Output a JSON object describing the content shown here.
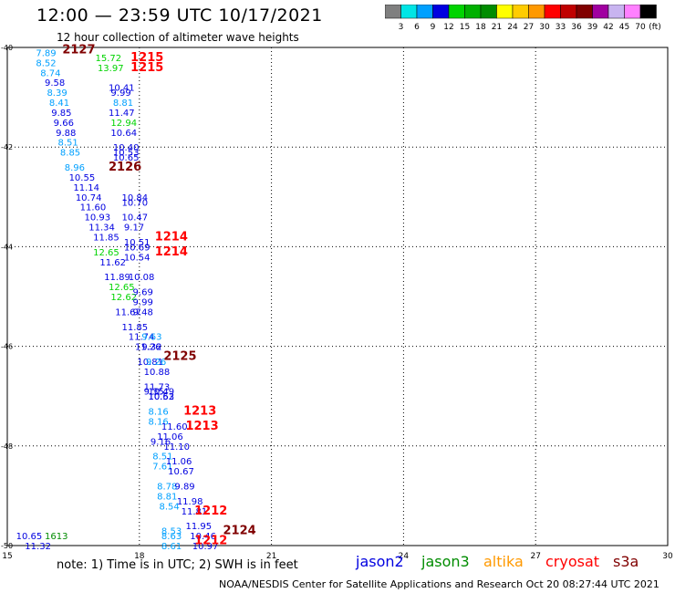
{
  "header": {
    "title": "12:00 — 23:59 UTC 10/17/2021",
    "subtitle": "12 hour collection of altimeter wave heights"
  },
  "legend": {
    "bins": [
      {
        "color": "#7f7f7f",
        "label": "3"
      },
      {
        "color": "#00e5e5",
        "label": "6"
      },
      {
        "color": "#00a0ff",
        "label": "9"
      },
      {
        "color": "#0000e0",
        "label": "12"
      },
      {
        "color": "#00d400",
        "label": "15"
      },
      {
        "color": "#00b000",
        "label": "18"
      },
      {
        "color": "#008c00",
        "label": "21"
      },
      {
        "color": "#ffff00",
        "label": "24"
      },
      {
        "color": "#ffcc00",
        "label": "27"
      },
      {
        "color": "#ff9900",
        "label": "30"
      },
      {
        "color": "#ff0000",
        "label": "33"
      },
      {
        "color": "#c00000",
        "label": "36"
      },
      {
        "color": "#800000",
        "label": "39"
      },
      {
        "color": "#a000a0",
        "label": "42"
      },
      {
        "color": "#c8b4f0",
        "label": "45"
      },
      {
        "color": "#ff80ff",
        "label": "70"
      },
      {
        "color": "#000000",
        "label": ""
      }
    ],
    "unit": "(ft)"
  },
  "map": {
    "lon_ticks": [
      "15",
      "18",
      "21",
      "24",
      "27",
      "30"
    ],
    "lat_ticks": [
      "-40",
      "-42",
      "-44",
      "-46",
      "-48",
      "-50"
    ],
    "labels": [
      {
        "t": "7.89",
        "lon": 15.65,
        "lat": -40.1,
        "c": "#00a0ff"
      },
      {
        "t": "8.52",
        "lon": 15.65,
        "lat": -40.3,
        "c": "#00a0ff"
      },
      {
        "t": "8.74",
        "lon": 15.75,
        "lat": -40.5,
        "c": "#00a0ff"
      },
      {
        "t": "9.58",
        "lon": 15.85,
        "lat": -40.7,
        "c": "#0000e0"
      },
      {
        "t": "8.39",
        "lon": 15.9,
        "lat": -40.9,
        "c": "#00a0ff"
      },
      {
        "t": "8.41",
        "lon": 15.95,
        "lat": -41.1,
        "c": "#00a0ff"
      },
      {
        "t": "9.85",
        "lon": 16.0,
        "lat": -41.3,
        "c": "#0000e0"
      },
      {
        "t": "9.66",
        "lon": 16.05,
        "lat": -41.5,
        "c": "#0000e0"
      },
      {
        "t": "9.88",
        "lon": 16.1,
        "lat": -41.7,
        "c": "#0000e0"
      },
      {
        "t": "8.51",
        "lon": 16.15,
        "lat": -41.9,
        "c": "#00a0ff"
      },
      {
        "t": "8.85",
        "lon": 16.2,
        "lat": -42.1,
        "c": "#00a0ff"
      },
      {
        "t": "8.96",
        "lon": 16.3,
        "lat": -42.4,
        "c": "#00a0ff"
      },
      {
        "t": "10.55",
        "lon": 16.4,
        "lat": -42.6,
        "c": "#0000e0"
      },
      {
        "t": "11.14",
        "lon": 16.5,
        "lat": -42.8,
        "c": "#0000e0"
      },
      {
        "t": "10.74",
        "lon": 16.55,
        "lat": -43.0,
        "c": "#0000e0"
      },
      {
        "t": "11.60",
        "lon": 16.65,
        "lat": -43.2,
        "c": "#0000e0"
      },
      {
        "t": "10.93",
        "lon": 16.75,
        "lat": -43.4,
        "c": "#0000e0"
      },
      {
        "t": "11.34",
        "lon": 16.85,
        "lat": -43.6,
        "c": "#0000e0"
      },
      {
        "t": "11.85",
        "lon": 16.95,
        "lat": -43.8,
        "c": "#0000e0"
      },
      {
        "t": "12.65",
        "lon": 16.95,
        "lat": -44.1,
        "c": "#00d400"
      },
      {
        "t": "11.62",
        "lon": 17.1,
        "lat": -44.3,
        "c": "#0000e0"
      },
      {
        "t": "11.89",
        "lon": 17.2,
        "lat": -44.6,
        "c": "#0000e0"
      },
      {
        "t": "12.65",
        "lon": 17.3,
        "lat": -44.8,
        "c": "#00d400"
      },
      {
        "t": "12.62",
        "lon": 17.35,
        "lat": -45.0,
        "c": "#00d400"
      },
      {
        "t": "11.67",
        "lon": 17.45,
        "lat": -45.3,
        "c": "#0000e0"
      },
      {
        "t": "11.85",
        "lon": 17.6,
        "lat": -45.6,
        "c": "#0000e0"
      },
      {
        "t": "11.74",
        "lon": 17.75,
        "lat": -45.8,
        "c": "#0000e0"
      },
      {
        "t": "11.26",
        "lon": 17.9,
        "lat": -46.0,
        "c": "#0000e0"
      },
      {
        "t": "10.81",
        "lon": 17.95,
        "lat": -46.3,
        "c": "#0000e0"
      },
      {
        "t": "10.88",
        "lon": 18.1,
        "lat": -46.5,
        "c": "#0000e0"
      },
      {
        "t": "11.73",
        "lon": 18.1,
        "lat": -46.8,
        "c": "#0000e0"
      },
      {
        "t": "9.35",
        "lon": 18.1,
        "lat": -46.9,
        "c": "#0000e0"
      },
      {
        "t": "10.63",
        "lon": 18.2,
        "lat": -47.0,
        "c": "#0000e0"
      },
      {
        "t": "8.16",
        "lon": 18.2,
        "lat": -47.3,
        "c": "#00a0ff"
      },
      {
        "t": "8.16",
        "lon": 18.2,
        "lat": -47.5,
        "c": "#00a0ff"
      },
      {
        "t": "9.16",
        "lon": 18.25,
        "lat": -47.9,
        "c": "#0000e0"
      },
      {
        "t": "8.51",
        "lon": 18.3,
        "lat": -48.2,
        "c": "#00a0ff"
      },
      {
        "t": "7.61",
        "lon": 18.3,
        "lat": -48.4,
        "c": "#00a0ff"
      },
      {
        "t": "8.78",
        "lon": 18.4,
        "lat": -48.8,
        "c": "#00a0ff"
      },
      {
        "t": "8.81",
        "lon": 18.4,
        "lat": -49.0,
        "c": "#00a0ff"
      },
      {
        "t": "8.54",
        "lon": 18.45,
        "lat": -49.2,
        "c": "#00a0ff"
      },
      {
        "t": "8.53",
        "lon": 18.5,
        "lat": -49.7,
        "c": "#00a0ff"
      },
      {
        "t": "8.63",
        "lon": 18.5,
        "lat": -49.8,
        "c": "#00a0ff"
      },
      {
        "t": "8.61",
        "lon": 18.5,
        "lat": -50.0,
        "c": "#00a0ff"
      },
      {
        "t": "10.65",
        "lon": 15.2,
        "lat": -49.8,
        "c": "#0000e0"
      },
      {
        "t": "11.32",
        "lon": 15.4,
        "lat": -50.0,
        "c": "#0000e0"
      },
      {
        "t": "1613",
        "lon": 15.85,
        "lat": -49.8,
        "c": "#008c00"
      },
      {
        "t": "15.72",
        "lon": 17.0,
        "lat": -40.2,
        "c": "#00d400"
      },
      {
        "t": "13.97",
        "lon": 17.05,
        "lat": -40.4,
        "c": "#00d400"
      },
      {
        "t": "10.41",
        "lon": 17.3,
        "lat": -40.8,
        "c": "#0000e0"
      },
      {
        "t": "9.99",
        "lon": 17.35,
        "lat": -40.9,
        "c": "#0000e0"
      },
      {
        "t": "8.81",
        "lon": 17.4,
        "lat": -41.1,
        "c": "#00a0ff"
      },
      {
        "t": "11.47",
        "lon": 17.3,
        "lat": -41.3,
        "c": "#0000e0"
      },
      {
        "t": "12.94",
        "lon": 17.35,
        "lat": -41.5,
        "c": "#00d400"
      },
      {
        "t": "10.64",
        "lon": 17.35,
        "lat": -41.7,
        "c": "#0000e0"
      },
      {
        "t": "10.40",
        "lon": 17.4,
        "lat": -42.0,
        "c": "#0000e0"
      },
      {
        "t": "10.53",
        "lon": 17.4,
        "lat": -42.1,
        "c": "#0000e0"
      },
      {
        "t": "10.65",
        "lon": 17.4,
        "lat": -42.2,
        "c": "#0000e0"
      },
      {
        "t": "10.84",
        "lon": 17.6,
        "lat": -43.0,
        "c": "#0000e0"
      },
      {
        "t": "10.70",
        "lon": 17.6,
        "lat": -43.1,
        "c": "#0000e0"
      },
      {
        "t": "10.47",
        "lon": 17.6,
        "lat": -43.4,
        "c": "#0000e0"
      },
      {
        "t": "9.17",
        "lon": 17.65,
        "lat": -43.6,
        "c": "#0000e0"
      },
      {
        "t": "10.51",
        "lon": 17.65,
        "lat": -43.9,
        "c": "#0000e0"
      },
      {
        "t": "10.69",
        "lon": 17.65,
        "lat": -44.0,
        "c": "#0000e0"
      },
      {
        "t": "10.54",
        "lon": 17.65,
        "lat": -44.2,
        "c": "#0000e0"
      },
      {
        "t": "10.08",
        "lon": 17.75,
        "lat": -44.6,
        "c": "#0000e0"
      },
      {
        "t": "9.69",
        "lon": 17.85,
        "lat": -44.9,
        "c": "#0000e0"
      },
      {
        "t": "9.99",
        "lon": 17.85,
        "lat": -45.1,
        "c": "#0000e0"
      },
      {
        "t": "9.48",
        "lon": 17.85,
        "lat": -45.3,
        "c": "#0000e0"
      },
      {
        "t": "9.63",
        "lon": 18.05,
        "lat": -45.8,
        "c": "#00a0ff"
      },
      {
        "t": "9.32",
        "lon": 18.05,
        "lat": -46.0,
        "c": "#0000e0"
      },
      {
        "t": "9.26",
        "lon": 18.15,
        "lat": -46.3,
        "c": "#00a0ff"
      },
      {
        "t": "10.49",
        "lon": 18.2,
        "lat": -46.9,
        "c": "#0000e0"
      },
      {
        "t": "10.52",
        "lon": 18.2,
        "lat": -47.0,
        "c": "#0000e0"
      },
      {
        "t": "11.60",
        "lon": 18.5,
        "lat": -47.6,
        "c": "#0000e0"
      },
      {
        "t": "11.06",
        "lon": 18.4,
        "lat": -47.8,
        "c": "#0000e0"
      },
      {
        "t": "11.10",
        "lon": 18.55,
        "lat": -48.0,
        "c": "#0000e0"
      },
      {
        "t": "11.06",
        "lon": 18.6,
        "lat": -48.3,
        "c": "#0000e0"
      },
      {
        "t": "10.67",
        "lon": 18.65,
        "lat": -48.5,
        "c": "#0000e0"
      },
      {
        "t": "9.89",
        "lon": 18.8,
        "lat": -48.8,
        "c": "#0000e0"
      },
      {
        "t": "11.98",
        "lon": 18.85,
        "lat": -49.1,
        "c": "#0000e0"
      },
      {
        "t": "11.81",
        "lon": 18.95,
        "lat": -49.3,
        "c": "#0000e0"
      },
      {
        "t": "11.95",
        "lon": 19.05,
        "lat": -49.6,
        "c": "#0000e0"
      },
      {
        "t": "10.46",
        "lon": 19.15,
        "lat": -49.8,
        "c": "#0000e0"
      },
      {
        "t": "10.97",
        "lon": 19.2,
        "lat": -50.0,
        "c": "#0000e0"
      },
      {
        "t": "2127",
        "lon": 16.25,
        "lat": -40.05,
        "c": "#800000",
        "big": true
      },
      {
        "t": "1215",
        "lon": 17.8,
        "lat": -40.2,
        "c": "#ff0000",
        "big": true
      },
      {
        "t": "1215",
        "lon": 17.8,
        "lat": -40.4,
        "c": "#ff0000",
        "big": true
      },
      {
        "t": "2126",
        "lon": 17.3,
        "lat": -42.4,
        "c": "#800000",
        "big": true
      },
      {
        "t": "1214",
        "lon": 18.35,
        "lat": -43.8,
        "c": "#ff0000",
        "big": true
      },
      {
        "t": "1214",
        "lon": 18.35,
        "lat": -44.1,
        "c": "#ff0000",
        "big": true
      },
      {
        "t": "2125",
        "lon": 18.55,
        "lat": -46.2,
        "c": "#800000",
        "big": true
      },
      {
        "t": "1213",
        "lon": 19.0,
        "lat": -47.3,
        "c": "#ff0000",
        "big": true
      },
      {
        "t": "1213",
        "lon": 19.05,
        "lat": -47.6,
        "c": "#ff0000",
        "big": true
      },
      {
        "t": "1212",
        "lon": 19.25,
        "lat": -49.3,
        "c": "#ff0000",
        "big": true
      },
      {
        "t": "2124",
        "lon": 19.9,
        "lat": -49.7,
        "c": "#800000",
        "big": true
      },
      {
        "t": "1212",
        "lon": 19.25,
        "lat": -49.9,
        "c": "#ff0000",
        "big": true
      }
    ]
  },
  "footer": {
    "note": "note:  1) Time is in UTC;  2) SWH is in feet",
    "satellites": [
      {
        "name": "jason2",
        "color": "#0000e0"
      },
      {
        "name": "jason3",
        "color": "#008c00"
      },
      {
        "name": "altika",
        "color": "#ff9900"
      },
      {
        "name": "cryosat",
        "color": "#ff0000"
      },
      {
        "name": "s3a",
        "color": "#800000"
      }
    ],
    "credit": "NOAA/NESDIS Center for Satellite Applications and Research     Oct 20 08:27:44 UTC 2021"
  }
}
